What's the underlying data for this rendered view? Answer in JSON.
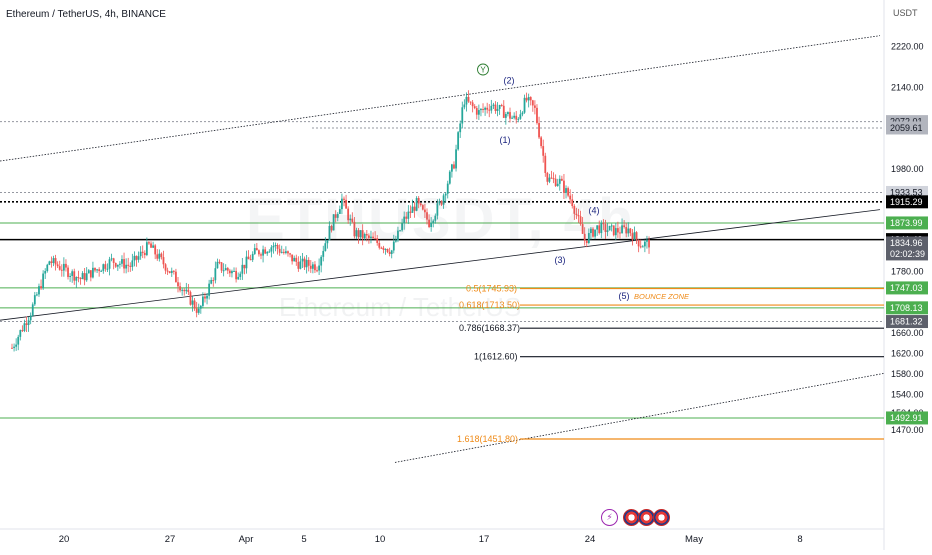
{
  "header": {
    "symbol_title": "Ethereum / TetherUS, 4h, BINANCE",
    "currency": "USDT"
  },
  "watermark": {
    "big": "ETHUSDT, 4h",
    "small": "Ethereum / TetherUS"
  },
  "chart_data": {
    "type": "candlestick",
    "title": "Ethereum / TetherUS, 4h, BINANCE",
    "ylim": [
      1470,
      2260
    ],
    "x_tick_labels": [
      "20",
      "27",
      "Apr",
      "5",
      "10",
      "17",
      "24",
      "May",
      "8"
    ],
    "y_tick_labels": [
      {
        "v": 2220,
        "t": "2220.00"
      },
      {
        "v": 2140,
        "t": "2140.00"
      },
      {
        "v": 1980,
        "t": "1980.00"
      },
      {
        "v": 1780,
        "t": "1780.00"
      },
      {
        "v": 1660,
        "t": "1660.00"
      },
      {
        "v": 1620,
        "t": "1620.00"
      },
      {
        "v": 1580,
        "t": "1580.00"
      },
      {
        "v": 1540,
        "t": "1540.00"
      },
      {
        "v": 1504,
        "t": "1504.00"
      },
      {
        "v": 1470,
        "t": "1470.00"
      }
    ],
    "price_labels": [
      {
        "v": 2072.01,
        "t": "2072.01",
        "bg": "#b2b5be",
        "fg": "#131722"
      },
      {
        "v": 2059.61,
        "t": "2059.61",
        "bg": "#b2b5be",
        "fg": "#131722"
      },
      {
        "v": 1933.53,
        "t": "1933.53",
        "bg": "#d1d4dc",
        "fg": "#131722"
      },
      {
        "v": 1915.29,
        "t": "1915.29",
        "bg": "#000000",
        "fg": "#ffffff"
      },
      {
        "v": 1873.99,
        "t": "1873.99",
        "bg": "#4caf50",
        "fg": "#ffffff"
      },
      {
        "v": 1841.43,
        "t": "1841.43",
        "bg": "#000000",
        "fg": "#ffffff"
      },
      {
        "v": 1834.96,
        "t": "1834.96\n02:02:39",
        "bg": "#5d606b",
        "fg": "#ffffff"
      },
      {
        "v": 1747.03,
        "t": "1747.03",
        "bg": "#4caf50",
        "fg": "#ffffff"
      },
      {
        "v": 1708.13,
        "t": "1708.13",
        "bg": "#4caf50",
        "fg": "#ffffff"
      },
      {
        "v": 1681.32,
        "t": "1681.32",
        "bg": "#5d606b",
        "fg": "#ffffff"
      },
      {
        "v": 1492.91,
        "t": "1492.91",
        "bg": "#4caf50",
        "fg": "#ffffff"
      }
    ],
    "horizontal_levels": [
      {
        "v": 2072.01,
        "style": "dotted",
        "color": "#9598a1"
      },
      {
        "v": 2059.61,
        "style": "dotted",
        "color": "#9598a1"
      },
      {
        "v": 1933.53,
        "style": "dotted",
        "color": "#9598a1"
      },
      {
        "v": 1915.29,
        "style": "dotted-bold",
        "color": "#000000"
      },
      {
        "v": 1873.99,
        "style": "solid",
        "color": "#4caf50"
      },
      {
        "v": 1841.43,
        "style": "solid-bold",
        "color": "#000000"
      },
      {
        "v": 1747.03,
        "style": "solid",
        "color": "#4caf50"
      },
      {
        "v": 1708.13,
        "style": "solid",
        "color": "#4caf50"
      },
      {
        "v": 1681.32,
        "style": "dotted",
        "color": "#9598a1"
      },
      {
        "v": 1492.91,
        "style": "solid",
        "color": "#4caf50"
      }
    ],
    "fib_levels": [
      {
        "label": "0.5(1745.93)",
        "v": 1745.93,
        "color": "#ef8a17"
      },
      {
        "label": "0.618(1713.50)",
        "v": 1713.5,
        "color": "#ef8a17"
      },
      {
        "label": "0.786(1668.37)",
        "v": 1668.37,
        "color": "#131722"
      },
      {
        "label": "1(1612.60)",
        "v": 1612.6,
        "color": "#131722"
      },
      {
        "label": "1.618(1451.80)",
        "v": 1451.8,
        "color": "#ef8a17"
      }
    ],
    "wave_labels": [
      {
        "t": "Y",
        "v": 2168,
        "circled": true,
        "color": "#2e7d32"
      },
      {
        "t": "(2)",
        "v": 2147,
        "color": "#1a237e"
      },
      {
        "t": "(1)",
        "v": 2030,
        "color": "#1a237e"
      },
      {
        "t": "(4)",
        "v": 1892,
        "color": "#1a237e"
      },
      {
        "t": "(3)",
        "v": 1796,
        "color": "#1a237e"
      },
      {
        "t": "(5)",
        "v": 1725,
        "color": "#1a237e"
      }
    ],
    "annotation": {
      "t": "BOUNCE ZONE",
      "color": "#ef8a17"
    },
    "trendlines": [
      {
        "name": "channel-upper",
        "v_start": 1995,
        "v_end": 2240
      },
      {
        "name": "channel-mid",
        "v_start": 1684,
        "v_end": 1900
      },
      {
        "name": "channel-lower",
        "v_start": 1406,
        "v_end": 1580
      }
    ],
    "anchors": [
      {
        "day": 0,
        "p": 1630
      },
      {
        "day": 1.5,
        "p": 1700
      },
      {
        "day": 3,
        "p": 1800
      },
      {
        "day": 5.5,
        "p": 1765
      },
      {
        "day": 8,
        "p": 1800
      },
      {
        "day": 9.5,
        "p": 1790
      },
      {
        "day": 11,
        "p": 1830
      },
      {
        "day": 13,
        "p": 1770
      },
      {
        "day": 15,
        "p": 1700
      },
      {
        "day": 16.5,
        "p": 1790
      },
      {
        "day": 18,
        "p": 1775
      },
      {
        "day": 19.5,
        "p": 1815
      },
      {
        "day": 21,
        "p": 1830
      },
      {
        "day": 23,
        "p": 1795
      },
      {
        "day": 24.5,
        "p": 1790
      },
      {
        "day": 25.5,
        "p": 1860
      },
      {
        "day": 26.5,
        "p": 1920
      },
      {
        "day": 27.5,
        "p": 1855
      },
      {
        "day": 29,
        "p": 1840
      },
      {
        "day": 30.5,
        "p": 1820
      },
      {
        "day": 31.5,
        "p": 1880
      },
      {
        "day": 32.5,
        "p": 1912
      },
      {
        "day": 33.5,
        "p": 1875
      },
      {
        "day": 34.5,
        "p": 1918
      },
      {
        "day": 35.5,
        "p": 1990
      },
      {
        "day": 36.3,
        "p": 2115
      },
      {
        "day": 37.5,
        "p": 2090
      },
      {
        "day": 38.5,
        "p": 2105
      },
      {
        "day": 39.5,
        "p": 2090
      },
      {
        "day": 40.5,
        "p": 2075
      },
      {
        "day": 41.3,
        "p": 2115
      },
      {
        "day": 42,
        "p": 2095
      },
      {
        "day": 43,
        "p": 1960
      },
      {
        "day": 44,
        "p": 1955
      },
      {
        "day": 45,
        "p": 1915
      },
      {
        "day": 46,
        "p": 1840
      },
      {
        "day": 47,
        "p": 1865
      },
      {
        "day": 48.5,
        "p": 1858
      },
      {
        "day": 49.5,
        "p": 1862
      },
      {
        "day": 50.5,
        "p": 1832
      },
      {
        "day": 51.2,
        "p": 1835
      }
    ],
    "candle_colors": {
      "up": "#26a69a",
      "down": "#ef5350"
    }
  },
  "event_icons": [
    "flash-icon",
    "flag-icon",
    "flag-icon",
    "flag-icon"
  ]
}
